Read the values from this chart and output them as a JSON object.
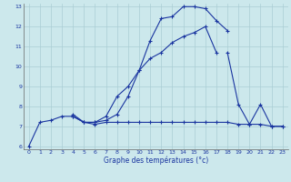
{
  "xlabel": "Graphe des températures (°c)",
  "bg_color": "#cce8ec",
  "grid_color": "#aacdd4",
  "line_color": "#1a35a0",
  "hours": [
    0,
    1,
    2,
    3,
    4,
    5,
    6,
    7,
    8,
    9,
    10,
    11,
    12,
    13,
    14,
    15,
    16,
    17,
    18,
    19,
    20,
    21,
    22,
    23
  ],
  "line1": [
    6.0,
    7.2,
    7.3,
    7.5,
    7.5,
    7.2,
    7.1,
    7.2,
    7.2,
    7.2,
    7.2,
    7.2,
    7.2,
    7.2,
    7.2,
    7.2,
    7.2,
    7.2,
    7.2,
    7.1,
    7.1,
    7.1,
    7.0,
    7.0
  ],
  "line2": [
    null,
    null,
    null,
    null,
    7.6,
    7.2,
    7.2,
    7.3,
    7.6,
    8.5,
    9.8,
    11.3,
    12.4,
    12.5,
    13.0,
    13.0,
    12.9,
    12.3,
    11.8,
    null,
    null,
    null,
    null,
    null
  ],
  "line3": [
    null,
    null,
    null,
    null,
    7.5,
    7.2,
    7.2,
    7.5,
    8.5,
    9.0,
    9.8,
    10.4,
    10.7,
    11.2,
    11.5,
    11.7,
    12.0,
    10.7,
    null,
    null,
    null,
    null,
    null,
    null
  ],
  "line4": [
    null,
    null,
    null,
    null,
    null,
    null,
    null,
    null,
    null,
    null,
    null,
    null,
    null,
    null,
    null,
    null,
    null,
    null,
    10.7,
    8.1,
    7.1,
    8.1,
    7.0,
    7.0
  ],
  "xmin": 0,
  "xmax": 23,
  "ymin": 6,
  "ymax": 13,
  "yticks": [
    6,
    7,
    8,
    9,
    10,
    11,
    12,
    13
  ]
}
